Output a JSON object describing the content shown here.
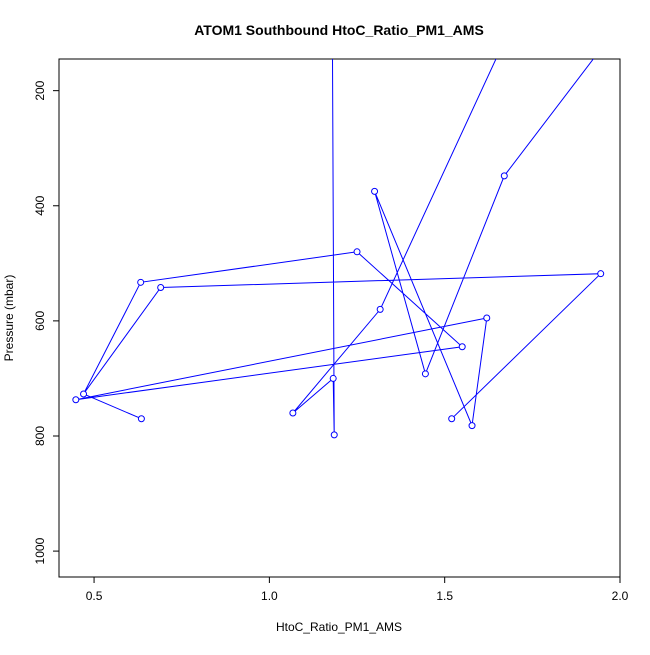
{
  "chart_data": {
    "type": "line",
    "title": "ATOM1 Southbound HtoC_Ratio_PM1_AMS",
    "xlabel": "HtoC_Ratio_PM1_AMS",
    "ylabel": "Pressure (mbar)",
    "xlim": [
      0.4,
      2.0
    ],
    "ylim": [
      1045,
      145
    ],
    "y_reversed": true,
    "grid": false,
    "legend": "none",
    "series_color": "#0000ff",
    "x_ticks": [
      {
        "value": 0.5,
        "label": "0.5"
      },
      {
        "value": 1.0,
        "label": "1.0"
      },
      {
        "value": 1.5,
        "label": "1.5"
      },
      {
        "value": 2.0,
        "label": "2.0"
      }
    ],
    "y_ticks": [
      {
        "value": 200,
        "label": "200"
      },
      {
        "value": 400,
        "label": "400"
      },
      {
        "value": 600,
        "label": "600"
      },
      {
        "value": 800,
        "label": "800"
      },
      {
        "value": 1000,
        "label": "1000"
      }
    ],
    "series": [
      {
        "points": [
          [
            1.18,
            140
          ],
          [
            1.185,
            798
          ],
          [
            1.182,
            700
          ],
          [
            1.067,
            760
          ],
          [
            1.316,
            580
          ],
          [
            1.65,
            140
          ],
          [
            1.93,
            140
          ],
          [
            1.67,
            348
          ],
          [
            1.445,
            692
          ],
          [
            1.3,
            375
          ],
          [
            1.578,
            782
          ],
          [
            1.62,
            595
          ],
          [
            0.448,
            737
          ],
          [
            1.55,
            645
          ],
          [
            1.25,
            480
          ],
          [
            0.633,
            533
          ],
          [
            0.47,
            727
          ],
          [
            0.69,
            542
          ],
          [
            1.945,
            518
          ],
          [
            1.52,
            770
          ]
        ]
      }
    ],
    "extra_markers": [
      {
        "x": 0.635,
        "y": 770
      }
    ],
    "extra_segments": [
      [
        [
          0.47,
          727
        ],
        [
          0.635,
          770
        ]
      ]
    ]
  }
}
